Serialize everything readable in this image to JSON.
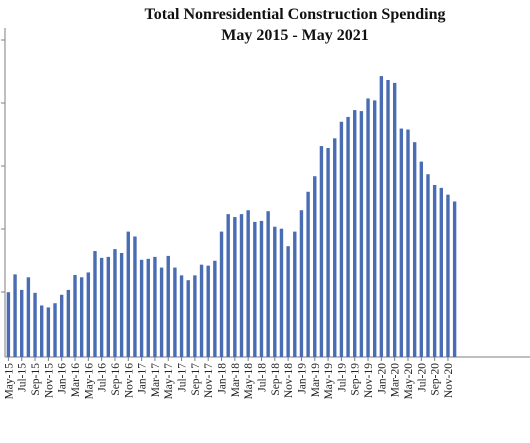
{
  "chart_data": {
    "type": "bar",
    "title": "Total Nonresidential Construction Spending",
    "subtitle": "May 2015 - May 2021",
    "xlabel": "",
    "ylabel": "",
    "grid": false,
    "legend": "none",
    "bar_color": "#4a6cb3",
    "ylim": [
      0,
      100
    ],
    "categories": [
      "May-15",
      "Jun-15",
      "Jul-15",
      "Aug-15",
      "Sep-15",
      "Oct-15",
      "Nov-15",
      "Dec-15",
      "Jan-16",
      "Feb-16",
      "Mar-16",
      "Apr-16",
      "May-16",
      "Jun-16",
      "Jul-16",
      "Aug-16",
      "Sep-16",
      "Oct-16",
      "Nov-16",
      "Dec-16",
      "Jan-17",
      "Feb-17",
      "Mar-17",
      "Apr-17",
      "May-17",
      "Jun-17",
      "Jul-17",
      "Aug-17",
      "Sep-17",
      "Oct-17",
      "Nov-17",
      "Dec-17",
      "Jan-18",
      "Feb-18",
      "Mar-18",
      "Apr-18",
      "May-18",
      "Jun-18",
      "Jul-18",
      "Aug-18",
      "Sep-18",
      "Oct-18",
      "Nov-18",
      "Dec-18",
      "Jan-19",
      "Feb-19",
      "Mar-19",
      "Apr-19",
      "May-19",
      "Jun-19",
      "Jul-19",
      "Aug-19",
      "Sep-19",
      "Oct-19",
      "Nov-19",
      "Dec-19",
      "Jan-20",
      "Feb-20",
      "Mar-20",
      "Apr-20",
      "May-20",
      "Jun-20",
      "Jul-20",
      "Aug-20",
      "Sep-20",
      "Oct-20",
      "Nov-20",
      "Dec-20"
    ],
    "values": [
      20,
      25.5,
      20.7,
      24.6,
      19.8,
      15.9,
      15.3,
      16.6,
      19.2,
      20.7,
      25.3,
      24.6,
      26.1,
      32.7,
      30.6,
      30.9,
      33.3,
      32.1,
      38.7,
      37.2,
      30.0,
      30.3,
      30.9,
      27.6,
      31.2,
      27.6,
      25.2,
      23.7,
      25.2,
      28.5,
      28.2,
      29.7,
      38.7,
      44.1,
      43.2,
      44.1,
      45.3,
      41.7,
      42.0,
      45.0,
      40.2,
      39.6,
      34.2,
      38.7,
      45.3,
      51.0,
      55.8,
      65.1,
      64.5,
      67.5,
      72.6,
      74.1,
      76.2,
      75.9,
      79.8,
      79.2,
      86.7,
      85.5,
      84.6,
      70.5,
      70.2,
      66.3,
      60.3,
      56.4,
      53.1,
      52.2,
      50.1,
      48.0
    ]
  }
}
